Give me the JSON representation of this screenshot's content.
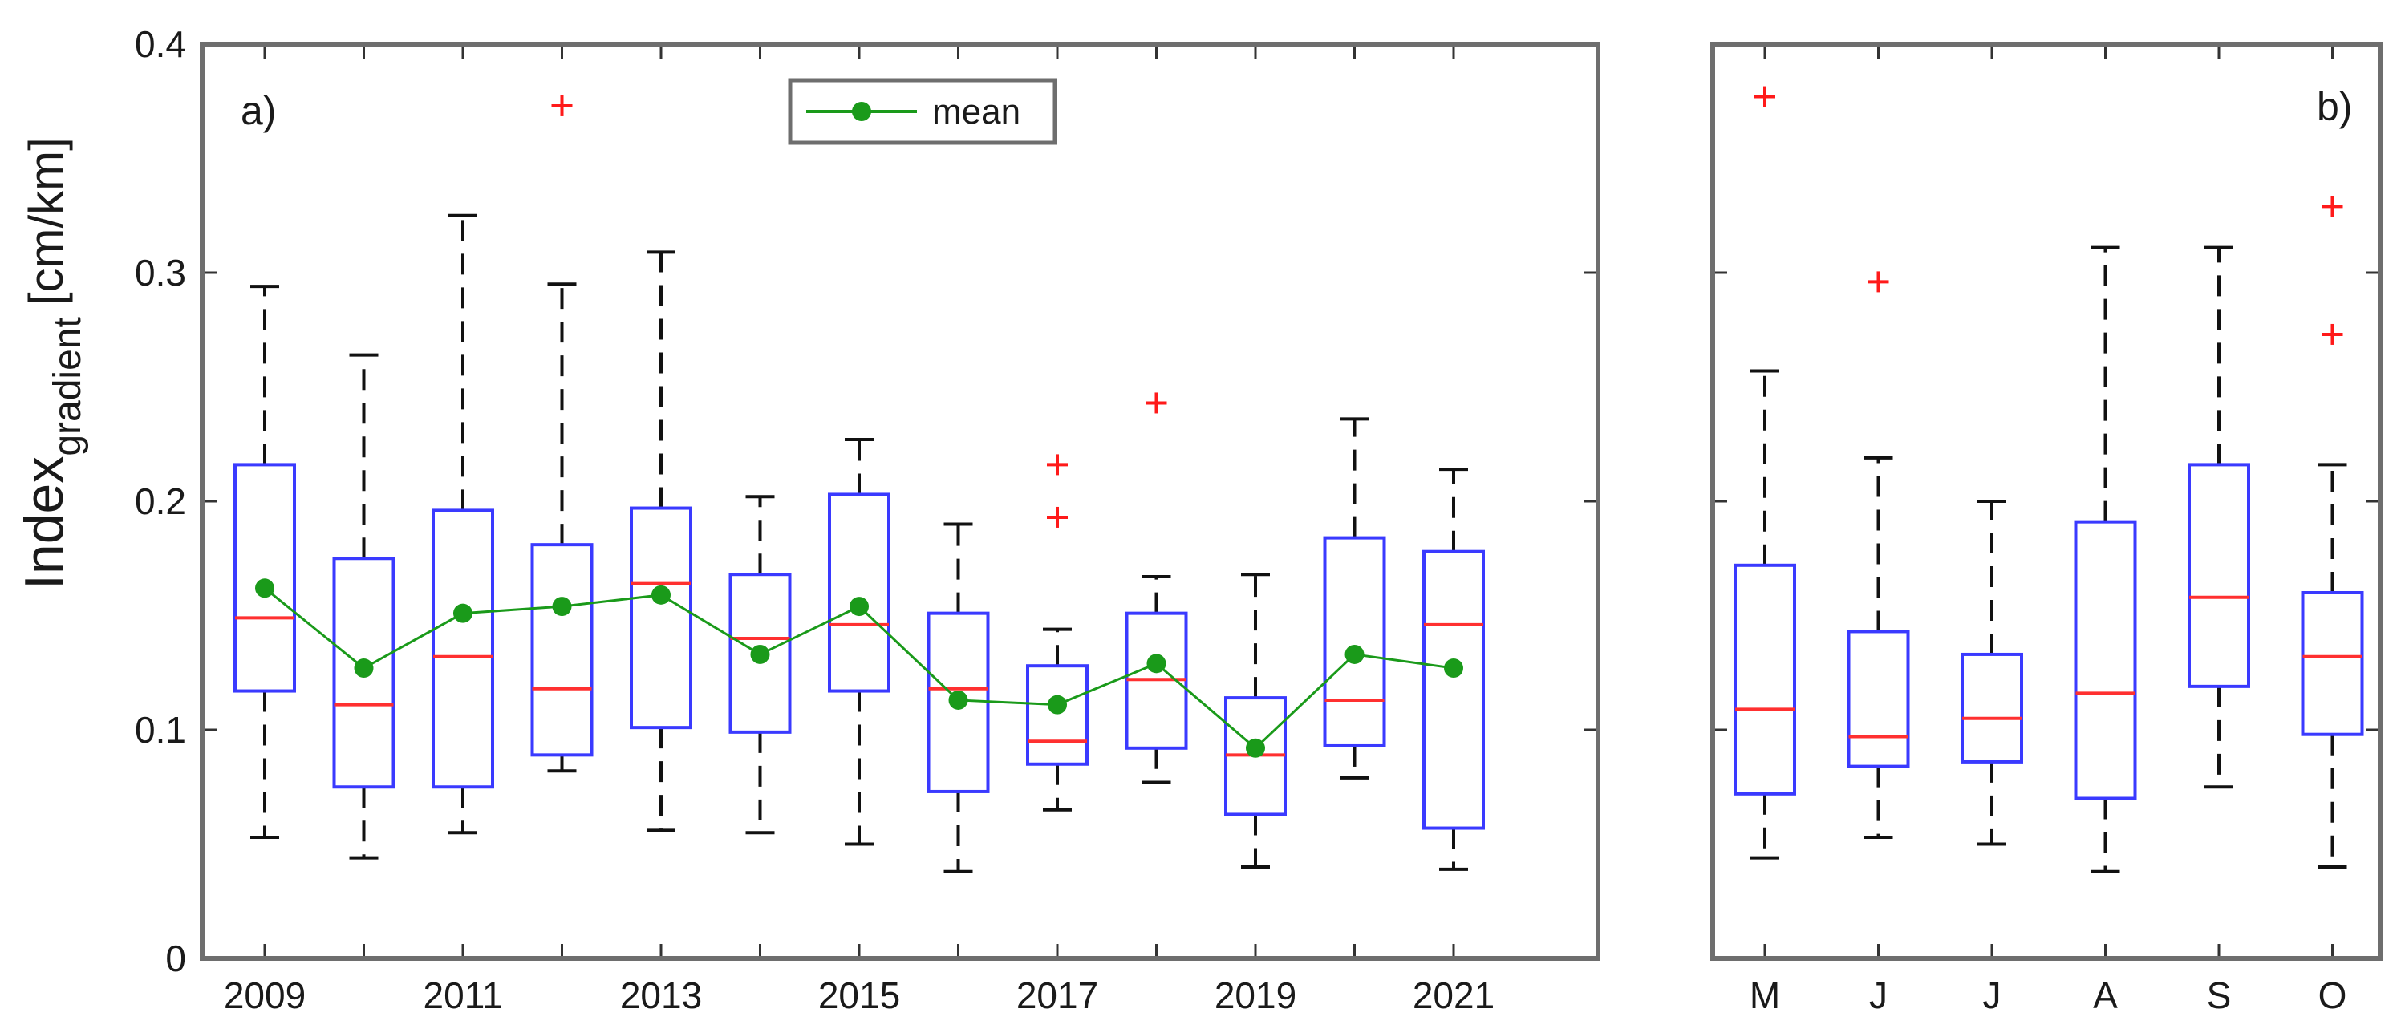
{
  "chart_data": [
    {
      "id": "yearly",
      "type": "box",
      "panel_label": "a)",
      "ylabel_main": "Index",
      "ylabel_sub": "gradient",
      "ylabel_unit": "[cm/km]",
      "ylim": [
        0,
        0.4
      ],
      "yticks": [
        0,
        0.1,
        0.2,
        0.3,
        0.4
      ],
      "ytick_labels": [
        "0",
        "0.1",
        "0.2",
        "0.3",
        "0.4"
      ],
      "categories": [
        "2009",
        "2010",
        "2011",
        "2012",
        "2013",
        "2014",
        "2015",
        "2016",
        "2017",
        "2018",
        "2019",
        "2020",
        "2021"
      ],
      "xtick_labels": [
        "2009",
        "",
        "2011",
        "",
        "2013",
        "",
        "2015",
        "",
        "2017",
        "",
        "2019",
        "",
        "2021"
      ],
      "legend": {
        "label": "mean",
        "placement": "top-center"
      },
      "boxes": [
        {
          "whislo": 0.053,
          "q1": 0.117,
          "med": 0.149,
          "q3": 0.216,
          "whishi": 0.294,
          "mean": 0.162,
          "fliers": []
        },
        {
          "whislo": 0.044,
          "q1": 0.075,
          "med": 0.111,
          "q3": 0.175,
          "whishi": 0.264,
          "mean": 0.127,
          "fliers": []
        },
        {
          "whislo": 0.055,
          "q1": 0.075,
          "med": 0.132,
          "q3": 0.196,
          "whishi": 0.325,
          "mean": 0.151,
          "fliers": []
        },
        {
          "whislo": 0.082,
          "q1": 0.089,
          "med": 0.118,
          "q3": 0.181,
          "whishi": 0.295,
          "mean": 0.154,
          "fliers": [
            0.373
          ]
        },
        {
          "whislo": 0.056,
          "q1": 0.101,
          "med": 0.164,
          "q3": 0.197,
          "whishi": 0.309,
          "mean": 0.159,
          "fliers": []
        },
        {
          "whislo": 0.055,
          "q1": 0.099,
          "med": 0.14,
          "q3": 0.168,
          "whishi": 0.202,
          "mean": 0.133,
          "fliers": []
        },
        {
          "whislo": 0.05,
          "q1": 0.117,
          "med": 0.146,
          "q3": 0.203,
          "whishi": 0.227,
          "mean": 0.154,
          "fliers": []
        },
        {
          "whislo": 0.038,
          "q1": 0.073,
          "med": 0.118,
          "q3": 0.151,
          "whishi": 0.19,
          "mean": 0.113,
          "fliers": []
        },
        {
          "whislo": 0.065,
          "q1": 0.085,
          "med": 0.095,
          "q3": 0.128,
          "whishi": 0.144,
          "mean": 0.111,
          "fliers": [
            0.193,
            0.216
          ]
        },
        {
          "whislo": 0.077,
          "q1": 0.092,
          "med": 0.122,
          "q3": 0.151,
          "whishi": 0.167,
          "mean": 0.129,
          "fliers": [
            0.243
          ]
        },
        {
          "whislo": 0.04,
          "q1": 0.063,
          "med": 0.089,
          "q3": 0.114,
          "whishi": 0.168,
          "mean": 0.092,
          "fliers": []
        },
        {
          "whislo": 0.079,
          "q1": 0.093,
          "med": 0.113,
          "q3": 0.184,
          "whishi": 0.236,
          "mean": 0.133,
          "fliers": []
        },
        {
          "whislo": 0.039,
          "q1": 0.057,
          "med": 0.146,
          "q3": 0.178,
          "whishi": 0.214,
          "mean": 0.127,
          "fliers": []
        }
      ]
    },
    {
      "id": "monthly",
      "type": "box",
      "panel_label": "b)",
      "ylim": [
        0,
        0.4
      ],
      "categories": [
        "M",
        "J",
        "J",
        "A",
        "S",
        "O"
      ],
      "boxes": [
        {
          "whislo": 0.044,
          "q1": 0.072,
          "med": 0.109,
          "q3": 0.172,
          "whishi": 0.257,
          "fliers": [
            0.377
          ]
        },
        {
          "whislo": 0.053,
          "q1": 0.084,
          "med": 0.097,
          "q3": 0.143,
          "whishi": 0.219,
          "fliers": [
            0.296
          ]
        },
        {
          "whislo": 0.05,
          "q1": 0.086,
          "med": 0.105,
          "q3": 0.133,
          "whishi": 0.2,
          "fliers": []
        },
        {
          "whislo": 0.038,
          "q1": 0.07,
          "med": 0.116,
          "q3": 0.191,
          "whishi": 0.311,
          "fliers": []
        },
        {
          "whislo": 0.075,
          "q1": 0.119,
          "med": 0.158,
          "q3": 0.216,
          "whishi": 0.311,
          "fliers": []
        },
        {
          "whislo": 0.04,
          "q1": 0.098,
          "med": 0.132,
          "q3": 0.16,
          "whishi": 0.216,
          "fliers": [
            0.273,
            0.329
          ]
        }
      ]
    }
  ],
  "colors": {
    "box": "#3a3aff",
    "median": "#ff3030",
    "outlier": "#ff1a1a",
    "mean": "#1a9a1a",
    "whisker": "#111111",
    "frame": "#6e6e6e"
  }
}
